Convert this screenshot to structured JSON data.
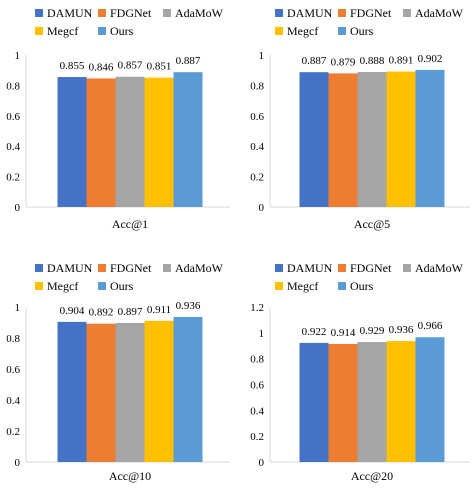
{
  "legend": {
    "items": [
      {
        "name": "DAMUN",
        "color": "#4472C4"
      },
      {
        "name": "FDGNet",
        "color": "#ED7D31"
      },
      {
        "name": "AdaMoW",
        "color": "#A5A5A5"
      },
      {
        "name": "Megcf",
        "color": "#FFC000"
      },
      {
        "name": "Ours",
        "color": "#5B9BD5"
      }
    ],
    "placement": "top"
  },
  "chart_data": [
    {
      "type": "bar",
      "xlabel": "Acc@1",
      "ylim": [
        0,
        1
      ],
      "yticks": [
        "0",
        "0.2",
        "0.4",
        "0.6",
        "0.8",
        "1"
      ],
      "grid": false,
      "series": [
        {
          "name": "DAMUN",
          "values": [
            0.855
          ],
          "label": "0.855"
        },
        {
          "name": "FDGNet",
          "values": [
            0.846
          ],
          "label": "0.846"
        },
        {
          "name": "AdaMoW",
          "values": [
            0.857
          ],
          "label": "0.857"
        },
        {
          "name": "Megcf",
          "values": [
            0.851
          ],
          "label": "0.851"
        },
        {
          "name": "Ours",
          "values": [
            0.887
          ],
          "label": "0.887"
        }
      ]
    },
    {
      "type": "bar",
      "xlabel": "Acc@5",
      "ylim": [
        0,
        1
      ],
      "yticks": [
        "0",
        "0.2",
        "0.4",
        "0.6",
        "0.8",
        "1"
      ],
      "grid": false,
      "series": [
        {
          "name": "DAMUN",
          "values": [
            0.887
          ],
          "label": "0.887"
        },
        {
          "name": "FDGNet",
          "values": [
            0.879
          ],
          "label": "0.879"
        },
        {
          "name": "AdaMoW",
          "values": [
            0.888
          ],
          "label": "0.888"
        },
        {
          "name": "Megcf",
          "values": [
            0.891
          ],
          "label": "0.891"
        },
        {
          "name": "Ours",
          "values": [
            0.902
          ],
          "label": "0.902"
        }
      ]
    },
    {
      "type": "bar",
      "xlabel": "Acc@10",
      "ylim": [
        0,
        1
      ],
      "yticks": [
        "0",
        "0.2",
        "0.4",
        "0.6",
        "0.8",
        "1"
      ],
      "grid": false,
      "series": [
        {
          "name": "DAMUN",
          "values": [
            0.904
          ],
          "label": "0.904"
        },
        {
          "name": "FDGNet",
          "values": [
            0.892
          ],
          "label": "0.892"
        },
        {
          "name": "AdaMoW",
          "values": [
            0.897
          ],
          "label": "0.897"
        },
        {
          "name": "Megcf",
          "values": [
            0.911
          ],
          "label": "0.911"
        },
        {
          "name": "Ours",
          "values": [
            0.936
          ],
          "label": "0.936"
        }
      ]
    },
    {
      "type": "bar",
      "xlabel": "Acc@20",
      "ylim": [
        0,
        1.2
      ],
      "yticks": [
        "0",
        "0.2",
        "0.4",
        "0.6",
        "0.8",
        "1",
        "1.2"
      ],
      "grid": false,
      "series": [
        {
          "name": "DAMUN",
          "values": [
            0.922
          ],
          "label": "0.922"
        },
        {
          "name": "FDGNet",
          "values": [
            0.914
          ],
          "label": "0.914"
        },
        {
          "name": "AdaMoW",
          "values": [
            0.929
          ],
          "label": "0.929"
        },
        {
          "name": "Megcf",
          "values": [
            0.936
          ],
          "label": "0.936"
        },
        {
          "name": "Ours",
          "values": [
            0.966
          ],
          "label": "0.966"
        }
      ]
    }
  ]
}
